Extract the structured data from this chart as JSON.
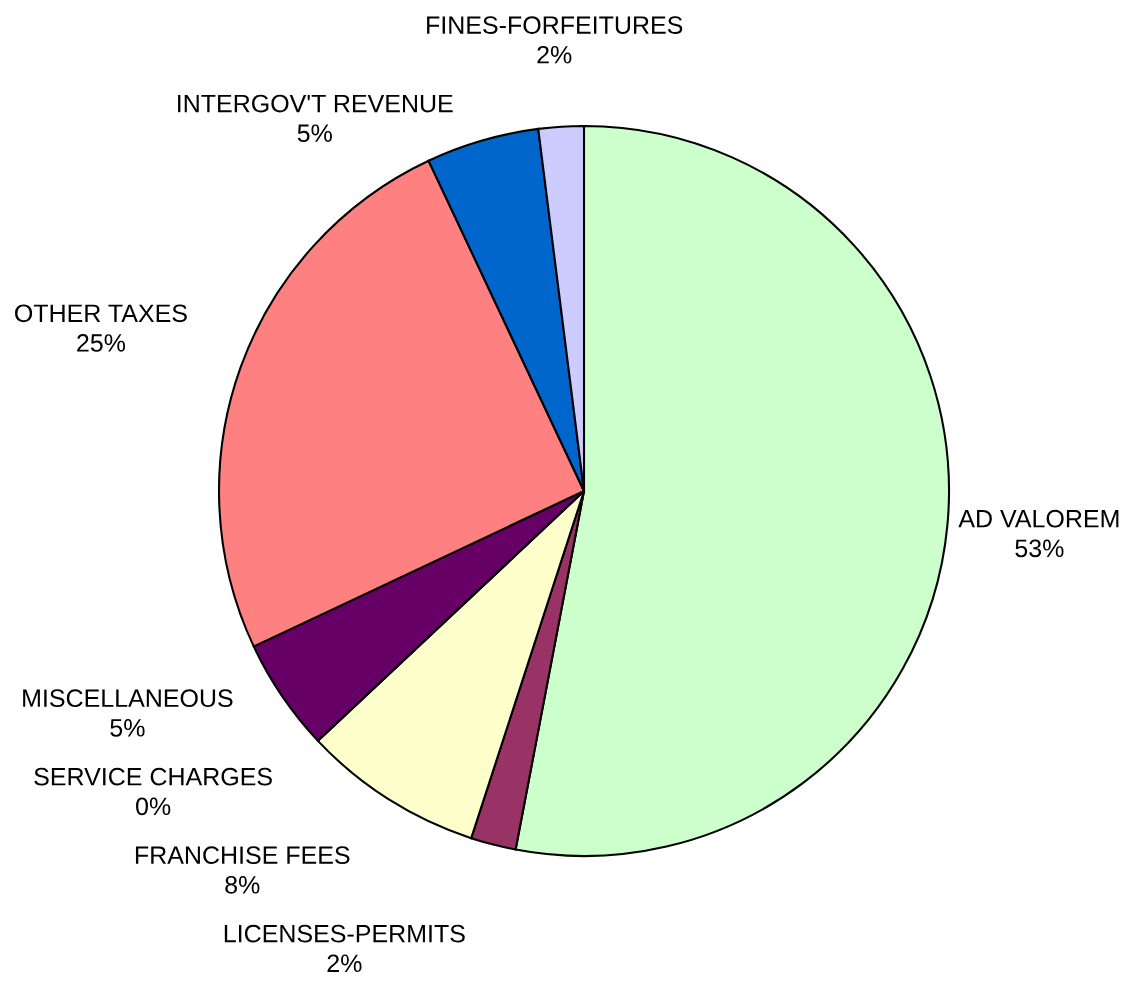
{
  "chart_data": {
    "type": "pie",
    "categories": [
      "AD VALOREM",
      "LICENSES-PERMITS",
      "FRANCHISE FEES",
      "SERVICE CHARGES",
      "MISCELLANEOUS",
      "OTHER TAXES",
      "INTERGOV'T REVENUE",
      "FINES-FORFEITURES"
    ],
    "values": [
      53,
      2,
      8,
      0,
      5,
      25,
      5,
      2
    ],
    "colors": [
      "#ccffcc",
      "#993366",
      "#ffffcc",
      "#ccffff",
      "#660066",
      "#ff8080",
      "#0066cc",
      "#ccccff"
    ],
    "value_labels": [
      "53%",
      "2%",
      "8%",
      "0%",
      "5%",
      "25%",
      "5%",
      "2%"
    ]
  }
}
